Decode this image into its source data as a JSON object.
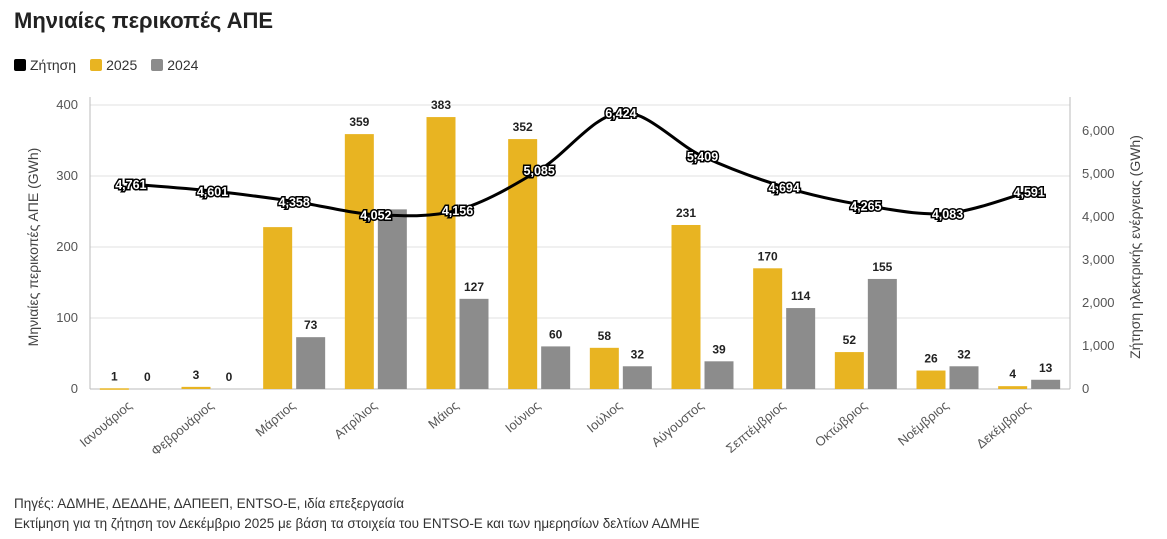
{
  "title": "Μηνιαίες περικοπές ΑΠΕ",
  "legend": [
    {
      "label": "Ζήτηση",
      "color": "#000000"
    },
    {
      "label": "2025",
      "color": "#e8b422"
    },
    {
      "label": "2024",
      "color": "#8c8c8c"
    }
  ],
  "chart_data": {
    "type": "bar",
    "categories": [
      "Ιανουάριος",
      "Φεβρουάριος",
      "Μάρτιος",
      "Απρίλιος",
      "Μάιος",
      "Ιούνιος",
      "Ιούλιος",
      "Αύγουστος",
      "Σεπτέμβριος",
      "Οκτώβριος",
      "Νοέμβριος",
      "Δεκέμβριος"
    ],
    "series": [
      {
        "name": "2025",
        "type": "bar",
        "axis": "left",
        "color": "#e8b422",
        "values": [
          1,
          3,
          228,
          359,
          383,
          352,
          58,
          231,
          170,
          52,
          26,
          4
        ],
        "labels": [
          "1",
          "3",
          "",
          "359",
          "383",
          "352",
          "58",
          "231",
          "170",
          "52",
          "26",
          "4"
        ]
      },
      {
        "name": "2024",
        "type": "bar",
        "axis": "left",
        "color": "#8c8c8c",
        "values": [
          0,
          0,
          73,
          253,
          127,
          60,
          32,
          39,
          114,
          155,
          32,
          13
        ],
        "labels": [
          "0",
          "0",
          "73",
          "",
          "127",
          "60",
          "32",
          "39",
          "114",
          "155",
          "32",
          "13"
        ]
      },
      {
        "name": "Ζήτηση",
        "type": "line",
        "axis": "right",
        "color": "#000000",
        "values": [
          4761,
          4601,
          4358,
          4052,
          4156,
          5085,
          6424,
          5409,
          4694,
          4265,
          4083,
          4591
        ],
        "labels": [
          "4,761",
          "4,601",
          "4,358",
          "4,052",
          "4,156",
          "5,085",
          "6,424",
          "5,409",
          "4,694",
          "4,265",
          "4,083",
          "4,591"
        ]
      }
    ],
    "ylabel": "Μηνιαίες περικοπές ΑΠΕ (GWh)",
    "y2label": "Ζήτηση ηλεκτρικής ενέργειας (GWh)",
    "ylim": [
      0,
      400
    ],
    "y2lim": [
      0,
      6600
    ],
    "yticks": [
      0,
      100,
      200,
      300,
      400
    ],
    "ytick_labels": [
      "0",
      "100",
      "200",
      "300",
      "400"
    ],
    "y2ticks": [
      0,
      1000,
      2000,
      3000,
      4000,
      5000,
      6000
    ],
    "y2tick_labels": [
      "0",
      "1,000",
      "2,000",
      "3,000",
      "4,000",
      "5,000",
      "6,000"
    ],
    "grid": true
  },
  "notes": [
    "Πηγές: ΑΔΜΗΕ, ΔΕΔΔΗΕ, ΔΑΠΕΕΠ, ENTSO-E, ιδία επεξεργασία",
    "Εκτίμηση για τη ζήτηση τον Δεκέμβριο 2025 με βάση τα στοιχεία του ENTSO-E και των ημερησίων δελτίων ΑΔΜΗΕ"
  ]
}
